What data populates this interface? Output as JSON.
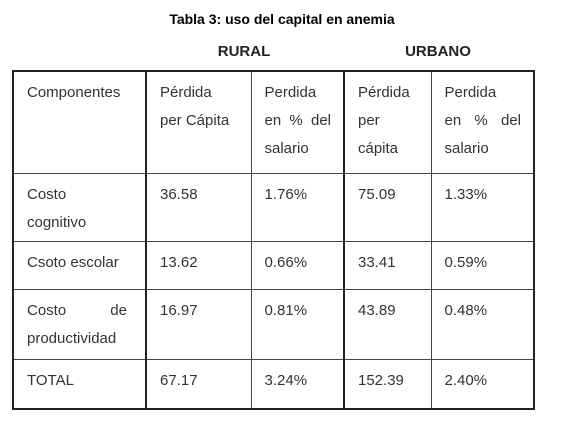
{
  "header": {
    "title": "Tabla 3: uso del capital en anemia",
    "groups": [
      "RURAL",
      "URBANO"
    ]
  },
  "table": {
    "columns": [
      [
        "Componentes"
      ],
      [
        "Pérdida",
        "per Cápita"
      ],
      [
        "Perdida",
        "en % del",
        "salario"
      ],
      [
        "Pérdida",
        "per",
        "cápita"
      ],
      [
        "Perdida",
        "en % del",
        "salario"
      ]
    ],
    "rows": [
      [
        "Costo cognitivo",
        "36.58",
        "1.76%",
        "75.09",
        "1.33%"
      ],
      [
        "Csoto escolar",
        "13.62",
        "0.66%",
        "33.41",
        "0.59%"
      ],
      [
        "Costo de productividad",
        "16.97",
        "0.81%",
        "43.89",
        "0.48%"
      ],
      [
        "TOTAL",
        "67.17",
        "3.24%",
        "152.39",
        "2.40%"
      ]
    ]
  }
}
